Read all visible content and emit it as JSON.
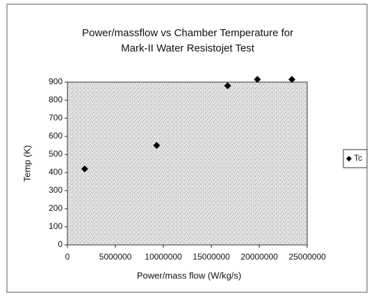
{
  "chart_data": {
    "type": "scatter",
    "title": [
      "Power/massflow vs Chamber Temperature for",
      "Mark-II Water Resistojet Test"
    ],
    "x_label": "Power/mass flow (W/kg/s)",
    "y_label": "Temp (K)",
    "x": [
      1800000,
      9300000,
      16700000,
      19800000,
      23400000
    ],
    "series": [
      {
        "name": "Tc",
        "color": "#000000",
        "values": [
          420,
          550,
          880,
          915,
          915
        ]
      }
    ],
    "xlim": [
      0,
      25000000
    ],
    "xticks": [
      0,
      5000000,
      10000000,
      15000000,
      20000000,
      25000000
    ],
    "ylim": [
      0,
      900
    ],
    "yticks": [
      0,
      100,
      200,
      300,
      400,
      500,
      600,
      700,
      800,
      900
    ],
    "legend": "right"
  }
}
